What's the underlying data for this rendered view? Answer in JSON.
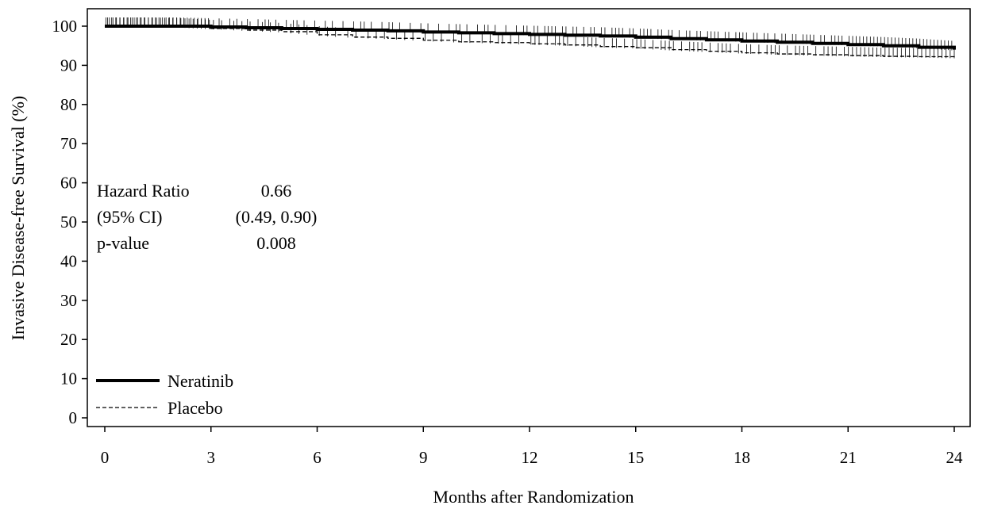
{
  "chart_data": {
    "type": "line",
    "title": "",
    "xlabel": "Months after Randomization",
    "ylabel": "Invasive Disease-free Survival (%)",
    "xlim": [
      0,
      24
    ],
    "ylim": [
      0,
      100
    ],
    "x_ticks": [
      0,
      3,
      6,
      9,
      12,
      15,
      18,
      21,
      24
    ],
    "y_ticks": [
      0,
      10,
      20,
      30,
      40,
      50,
      60,
      70,
      80,
      90,
      100
    ],
    "grid": false,
    "legend_position": "bottom-left",
    "annotations": [
      {
        "label": "Hazard Ratio",
        "value": "0.66"
      },
      {
        "label": "(95% CI)",
        "value": "(0.49, 0.90)"
      },
      {
        "label": "p-value",
        "value": "0.008"
      }
    ],
    "series": [
      {
        "name": "Neratinib",
        "line_style": "solid-thick",
        "x": [
          0,
          1,
          2,
          3,
          4,
          5,
          6,
          7,
          8,
          9,
          10,
          11,
          12,
          13,
          14,
          15,
          16,
          17,
          18,
          19,
          20,
          21,
          22,
          23,
          24
        ],
        "y": [
          100,
          100,
          100,
          99.8,
          99.6,
          99.4,
          99.2,
          99.0,
          98.8,
          98.5,
          98.3,
          98.1,
          97.9,
          97.7,
          97.5,
          97.2,
          96.8,
          96.5,
          96.2,
          95.9,
          95.6,
          95.3,
          95.0,
          94.6,
          94.0
        ]
      },
      {
        "name": "Placebo",
        "line_style": "dashed",
        "x": [
          0,
          1,
          2,
          3,
          4,
          5,
          6,
          7,
          8,
          9,
          10,
          11,
          12,
          13,
          14,
          15,
          16,
          17,
          18,
          19,
          20,
          21,
          22,
          23,
          24
        ],
        "y": [
          100,
          100,
          99.9,
          99.4,
          99.0,
          98.6,
          97.8,
          97.2,
          96.9,
          96.4,
          96.0,
          95.8,
          95.5,
          95.2,
          94.8,
          94.5,
          94.0,
          93.6,
          93.2,
          92.9,
          92.7,
          92.5,
          92.3,
          92.2,
          92.0
        ]
      }
    ]
  }
}
